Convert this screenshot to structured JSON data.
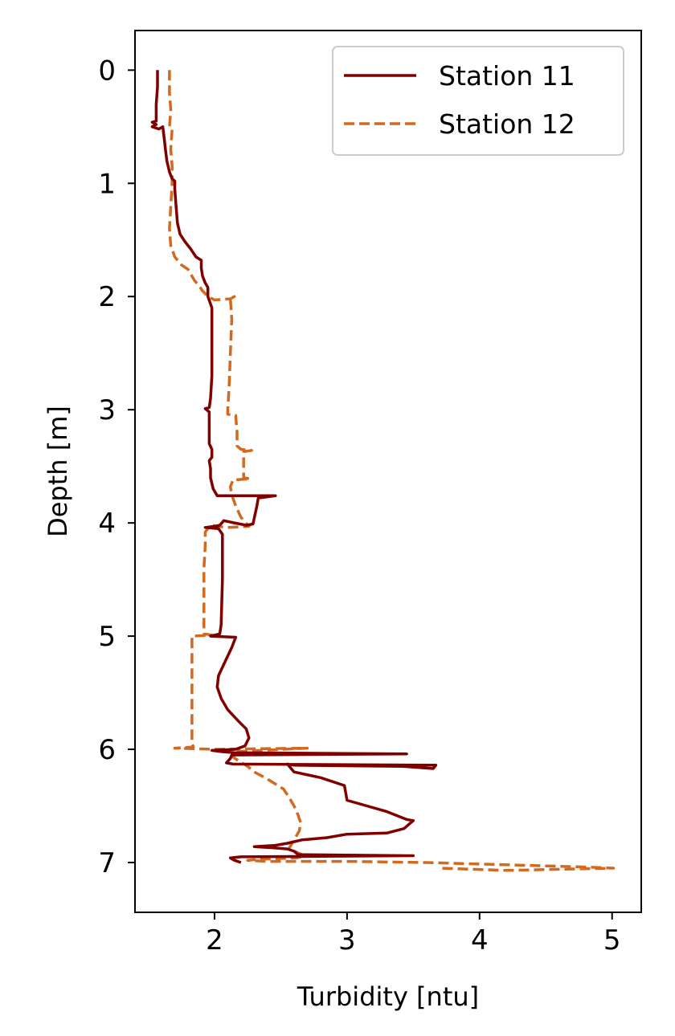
{
  "chart_data": {
    "type": "line",
    "title": "",
    "xlabel": "Turbidity [ntu]",
    "ylabel": "Depth [m]",
    "xlim": [
      1.4,
      5.22
    ],
    "ylim": [
      7.44,
      -0.35
    ],
    "y_inverted": true,
    "xticks": [
      "2",
      "3",
      "4",
      "5"
    ],
    "yticks": [
      "0",
      "1",
      "2",
      "3",
      "4",
      "5",
      "6",
      "7"
    ],
    "grid": false,
    "legend_position": "top-right",
    "series": [
      {
        "name": "Station 11",
        "color": "#800000",
        "style": "solid",
        "points": [
          [
            1.57,
            0.0
          ],
          [
            1.57,
            0.15
          ],
          [
            1.56,
            0.3
          ],
          [
            1.56,
            0.45
          ],
          [
            1.53,
            0.46
          ],
          [
            1.56,
            0.48
          ],
          [
            1.53,
            0.5
          ],
          [
            1.58,
            0.52
          ],
          [
            1.61,
            0.5
          ],
          [
            1.62,
            0.6
          ],
          [
            1.63,
            0.7
          ],
          [
            1.64,
            0.8
          ],
          [
            1.66,
            0.9
          ],
          [
            1.68,
            0.96
          ],
          [
            1.7,
            0.98
          ],
          [
            1.7,
            1.05
          ],
          [
            1.71,
            1.2
          ],
          [
            1.72,
            1.35
          ],
          [
            1.74,
            1.45
          ],
          [
            1.78,
            1.52
          ],
          [
            1.82,
            1.58
          ],
          [
            1.86,
            1.65
          ],
          [
            1.9,
            1.68
          ],
          [
            1.9,
            1.75
          ],
          [
            1.91,
            1.82
          ],
          [
            1.93,
            1.88
          ],
          [
            1.95,
            1.92
          ],
          [
            1.95,
            2.0
          ],
          [
            1.98,
            2.1
          ],
          [
            1.98,
            2.4
          ],
          [
            1.98,
            2.7
          ],
          [
            1.97,
            2.9
          ],
          [
            1.96,
            2.98
          ],
          [
            1.93,
            2.99
          ],
          [
            1.96,
            3.02
          ],
          [
            1.96,
            3.2
          ],
          [
            1.96,
            3.3
          ],
          [
            1.98,
            3.35
          ],
          [
            1.98,
            3.42
          ],
          [
            1.96,
            3.45
          ],
          [
            1.97,
            3.52
          ],
          [
            1.97,
            3.6
          ],
          [
            1.99,
            3.7
          ],
          [
            2.02,
            3.76
          ],
          [
            2.46,
            3.76
          ],
          [
            2.33,
            3.78
          ],
          [
            2.32,
            3.85
          ],
          [
            2.29,
            4.01
          ],
          [
            2.24,
            4.02
          ],
          [
            2.15,
            4.0
          ],
          [
            2.07,
            3.98
          ],
          [
            2.04,
            4.02
          ],
          [
            2.0,
            4.03
          ],
          [
            1.93,
            4.04
          ],
          [
            2.03,
            4.05
          ],
          [
            2.06,
            4.1
          ],
          [
            2.06,
            4.5
          ],
          [
            2.05,
            4.9
          ],
          [
            2.04,
            4.98
          ],
          [
            1.97,
            5.0
          ],
          [
            2.16,
            5.01
          ],
          [
            2.13,
            5.1
          ],
          [
            2.07,
            5.25
          ],
          [
            2.03,
            5.35
          ],
          [
            2.02,
            5.45
          ],
          [
            2.05,
            5.55
          ],
          [
            2.1,
            5.65
          ],
          [
            2.18,
            5.75
          ],
          [
            2.24,
            5.82
          ],
          [
            2.26,
            5.9
          ],
          [
            2.23,
            5.97
          ],
          [
            2.16,
            6.0
          ],
          [
            1.98,
            6.01
          ],
          [
            2.05,
            6.02
          ],
          [
            2.15,
            6.03
          ],
          [
            3.45,
            6.04
          ],
          [
            2.13,
            6.05
          ],
          [
            2.12,
            6.08
          ],
          [
            2.09,
            6.12
          ],
          [
            2.14,
            6.13
          ],
          [
            3.67,
            6.14
          ],
          [
            3.65,
            6.17
          ],
          [
            3.42,
            6.15
          ],
          [
            2.6,
            6.14
          ],
          [
            2.55,
            6.13
          ],
          [
            2.6,
            6.2
          ],
          [
            2.8,
            6.25
          ],
          [
            2.98,
            6.32
          ],
          [
            3.0,
            6.45
          ],
          [
            3.15,
            6.5
          ],
          [
            3.3,
            6.55
          ],
          [
            3.45,
            6.62
          ],
          [
            3.5,
            6.63
          ],
          [
            3.43,
            6.7
          ],
          [
            3.3,
            6.74
          ],
          [
            3.0,
            6.75
          ],
          [
            2.85,
            6.78
          ],
          [
            2.66,
            6.8
          ],
          [
            2.55,
            6.83
          ],
          [
            2.45,
            6.85
          ],
          [
            2.3,
            6.86
          ],
          [
            2.45,
            6.87
          ],
          [
            2.55,
            6.88
          ],
          [
            2.6,
            6.9
          ],
          [
            2.63,
            6.93
          ],
          [
            3.5,
            6.94
          ],
          [
            2.2,
            6.95
          ],
          [
            2.12,
            6.96
          ],
          [
            2.15,
            6.98
          ],
          [
            2.2,
            7.0
          ]
        ]
      },
      {
        "name": "Station 12",
        "color": "#d2691e",
        "style": "dashed",
        "points": [
          [
            1.66,
            0.0
          ],
          [
            1.66,
            0.2
          ],
          [
            1.67,
            0.35
          ],
          [
            1.66,
            0.5
          ],
          [
            1.68,
            0.52
          ],
          [
            1.67,
            0.7
          ],
          [
            1.68,
            0.85
          ],
          [
            1.68,
            1.0
          ],
          [
            1.67,
            1.2
          ],
          [
            1.66,
            1.4
          ],
          [
            1.67,
            1.55
          ],
          [
            1.7,
            1.65
          ],
          [
            1.75,
            1.72
          ],
          [
            1.8,
            1.76
          ],
          [
            1.83,
            1.82
          ],
          [
            1.85,
            1.86
          ],
          [
            1.88,
            1.9
          ],
          [
            1.91,
            1.95
          ],
          [
            1.95,
            2.0
          ],
          [
            2.0,
            2.03
          ],
          [
            2.12,
            2.02
          ],
          [
            2.15,
            2.0
          ],
          [
            2.12,
            2.02
          ],
          [
            2.13,
            2.2
          ],
          [
            2.12,
            2.5
          ],
          [
            2.11,
            2.8
          ],
          [
            2.1,
            3.0
          ],
          [
            2.1,
            3.04
          ],
          [
            2.16,
            3.05
          ],
          [
            2.17,
            3.2
          ],
          [
            2.17,
            3.32
          ],
          [
            2.2,
            3.35
          ],
          [
            2.28,
            3.36
          ],
          [
            2.22,
            3.37
          ],
          [
            2.22,
            3.5
          ],
          [
            2.22,
            3.6
          ],
          [
            2.27,
            3.61
          ],
          [
            2.14,
            3.62
          ],
          [
            2.12,
            3.68
          ],
          [
            2.13,
            3.75
          ],
          [
            2.16,
            3.85
          ],
          [
            2.2,
            3.95
          ],
          [
            2.26,
            4.03
          ],
          [
            2.1,
            4.04
          ],
          [
            2.02,
            4.03
          ],
          [
            1.98,
            4.02
          ],
          [
            1.95,
            4.05
          ],
          [
            1.93,
            4.08
          ],
          [
            1.93,
            4.2
          ],
          [
            1.92,
            4.4
          ],
          [
            1.92,
            4.6
          ],
          [
            1.92,
            4.8
          ],
          [
            1.92,
            4.98
          ],
          [
            1.98,
            4.99
          ],
          [
            1.83,
            5.0
          ],
          [
            1.83,
            5.2
          ],
          [
            1.83,
            5.4
          ],
          [
            1.83,
            5.6
          ],
          [
            1.83,
            5.8
          ],
          [
            1.83,
            5.95
          ],
          [
            1.84,
            5.98
          ],
          [
            1.7,
            5.99
          ],
          [
            2.0,
            6.0
          ],
          [
            2.7,
            5.99
          ],
          [
            2.15,
            6.02
          ],
          [
            2.13,
            6.06
          ],
          [
            2.18,
            6.1
          ],
          [
            2.25,
            6.15
          ],
          [
            2.3,
            6.2
          ],
          [
            2.38,
            6.25
          ],
          [
            2.45,
            6.3
          ],
          [
            2.52,
            6.35
          ],
          [
            2.56,
            6.42
          ],
          [
            2.6,
            6.5
          ],
          [
            2.63,
            6.58
          ],
          [
            2.65,
            6.65
          ],
          [
            2.64,
            6.72
          ],
          [
            2.6,
            6.8
          ],
          [
            2.56,
            6.88
          ],
          [
            2.6,
            6.9
          ],
          [
            2.68,
            6.94
          ],
          [
            2.62,
            6.96
          ],
          [
            2.35,
            6.97
          ],
          [
            2.25,
            6.98
          ],
          [
            2.4,
            6.99
          ],
          [
            3.0,
            6.99
          ],
          [
            3.6,
            7.0
          ],
          [
            3.9,
            7.01
          ],
          [
            4.2,
            7.02
          ],
          [
            4.5,
            7.03
          ],
          [
            4.8,
            7.04
          ],
          [
            5.01,
            7.05
          ],
          [
            4.6,
            7.06
          ],
          [
            4.2,
            7.07
          ],
          [
            3.7,
            7.05
          ]
        ]
      }
    ]
  }
}
